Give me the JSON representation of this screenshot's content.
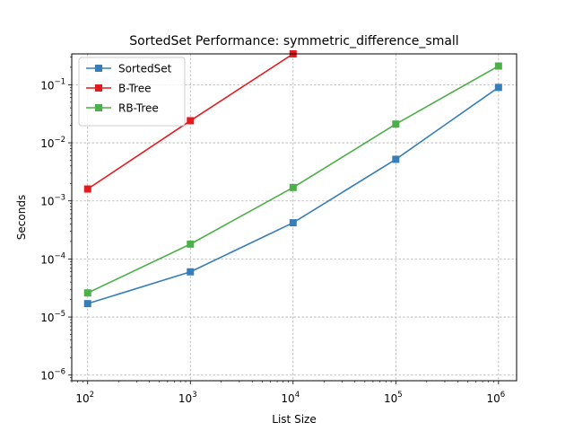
{
  "chart_data": {
    "type": "line",
    "title": "SortedSet Performance: symmetric_difference_small",
    "xlabel": "List Size",
    "ylabel": "Seconds",
    "xscale": "log",
    "yscale": "log",
    "xlim": [
      70,
      1500000
    ],
    "ylim": [
      8e-07,
      0.34
    ],
    "x_ticks": [
      {
        "value": 100,
        "base": "10",
        "exp": "2"
      },
      {
        "value": 1000,
        "base": "10",
        "exp": "3"
      },
      {
        "value": 10000,
        "base": "10",
        "exp": "4"
      },
      {
        "value": 100000,
        "base": "10",
        "exp": "5"
      },
      {
        "value": 1000000,
        "base": "10",
        "exp": "6"
      }
    ],
    "y_ticks": [
      {
        "value": 1e-06,
        "base": "10",
        "exp": "−6"
      },
      {
        "value": 1e-05,
        "base": "10",
        "exp": "−5"
      },
      {
        "value": 0.0001,
        "base": "10",
        "exp": "−4"
      },
      {
        "value": 0.001,
        "base": "10",
        "exp": "−3"
      },
      {
        "value": 0.01,
        "base": "10",
        "exp": "−2"
      },
      {
        "value": 0.1,
        "base": "10",
        "exp": "−1"
      }
    ],
    "grid": true,
    "legend_position": "upper-left",
    "series": [
      {
        "name": "SortedSet",
        "color": "#377eb8",
        "marker": "square",
        "x": [
          100,
          1000,
          10000,
          100000,
          1000000
        ],
        "values": [
          1.7e-05,
          6e-05,
          0.00042,
          0.0052,
          0.09
        ]
      },
      {
        "name": "B-Tree",
        "color": "#e41a1c",
        "marker": "square",
        "x": [
          100,
          1000,
          10000
        ],
        "values": [
          0.0016,
          0.024,
          0.34
        ]
      },
      {
        "name": "RB-Tree",
        "color": "#4daf4a",
        "marker": "square",
        "x": [
          100,
          1000,
          10000,
          100000,
          1000000
        ],
        "values": [
          2.6e-05,
          0.00018,
          0.0017,
          0.021,
          0.21
        ]
      }
    ]
  }
}
